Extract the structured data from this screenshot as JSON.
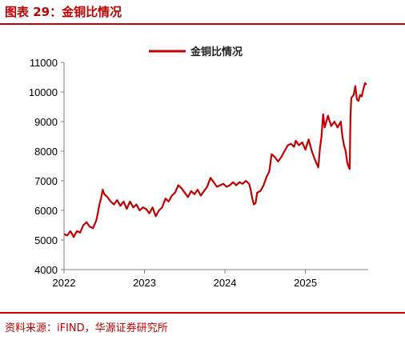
{
  "figure": {
    "title": "图表 29：金铜比情况",
    "source": "资料来源：iFIND，华源证券研究所"
  },
  "colors": {
    "accent": "#c00000",
    "series": "#c00000",
    "axis": "#808080"
  },
  "chart_data": {
    "type": "line",
    "title": "",
    "xlabel": "",
    "ylabel": "",
    "ylim": [
      4000,
      11000
    ],
    "yticks": [
      4000,
      5000,
      6000,
      7000,
      8000,
      9000,
      10000,
      11000
    ],
    "xlim": [
      2022.0,
      2025.78
    ],
    "xticks": [
      2022,
      2023,
      2024,
      2025
    ],
    "grid": false,
    "legend": "top-center",
    "series": [
      {
        "name": "金铜比情况",
        "points": [
          [
            2022.0,
            5200
          ],
          [
            2022.04,
            5150
          ],
          [
            2022.08,
            5300
          ],
          [
            2022.12,
            5100
          ],
          [
            2022.16,
            5300
          ],
          [
            2022.2,
            5250
          ],
          [
            2022.24,
            5500
          ],
          [
            2022.28,
            5600
          ],
          [
            2022.32,
            5450
          ],
          [
            2022.36,
            5400
          ],
          [
            2022.4,
            5650
          ],
          [
            2022.42,
            5900
          ],
          [
            2022.44,
            6200
          ],
          [
            2022.46,
            6400
          ],
          [
            2022.48,
            6700
          ],
          [
            2022.5,
            6550
          ],
          [
            2022.54,
            6450
          ],
          [
            2022.58,
            6300
          ],
          [
            2022.62,
            6200
          ],
          [
            2022.66,
            6350
          ],
          [
            2022.7,
            6150
          ],
          [
            2022.74,
            6300
          ],
          [
            2022.78,
            6050
          ],
          [
            2022.82,
            6300
          ],
          [
            2022.86,
            6100
          ],
          [
            2022.9,
            6200
          ],
          [
            2022.94,
            6000
          ],
          [
            2022.98,
            6100
          ],
          [
            2023.02,
            6050
          ],
          [
            2023.06,
            5900
          ],
          [
            2023.1,
            6100
          ],
          [
            2023.14,
            5800
          ],
          [
            2023.18,
            6000
          ],
          [
            2023.22,
            6100
          ],
          [
            2023.26,
            6400
          ],
          [
            2023.3,
            6300
          ],
          [
            2023.34,
            6500
          ],
          [
            2023.38,
            6600
          ],
          [
            2023.42,
            6850
          ],
          [
            2023.46,
            6750
          ],
          [
            2023.5,
            6600
          ],
          [
            2023.54,
            6450
          ],
          [
            2023.58,
            6650
          ],
          [
            2023.62,
            6550
          ],
          [
            2023.66,
            6700
          ],
          [
            2023.7,
            6500
          ],
          [
            2023.74,
            6650
          ],
          [
            2023.78,
            6800
          ],
          [
            2023.82,
            7100
          ],
          [
            2023.86,
            6950
          ],
          [
            2023.9,
            6800
          ],
          [
            2023.94,
            6850
          ],
          [
            2023.98,
            6900
          ],
          [
            2024.02,
            6800
          ],
          [
            2024.06,
            6850
          ],
          [
            2024.1,
            6950
          ],
          [
            2024.14,
            6850
          ],
          [
            2024.18,
            6950
          ],
          [
            2024.22,
            6900
          ],
          [
            2024.26,
            7000
          ],
          [
            2024.3,
            6900
          ],
          [
            2024.32,
            6700
          ],
          [
            2024.34,
            6400
          ],
          [
            2024.36,
            6200
          ],
          [
            2024.38,
            6250
          ],
          [
            2024.4,
            6600
          ],
          [
            2024.44,
            6650
          ],
          [
            2024.48,
            6850
          ],
          [
            2024.52,
            7150
          ],
          [
            2024.55,
            7300
          ],
          [
            2024.58,
            7900
          ],
          [
            2024.62,
            7800
          ],
          [
            2024.66,
            7650
          ],
          [
            2024.7,
            7800
          ],
          [
            2024.74,
            8000
          ],
          [
            2024.78,
            8200
          ],
          [
            2024.82,
            8250
          ],
          [
            2024.86,
            8150
          ],
          [
            2024.88,
            8350
          ],
          [
            2024.92,
            8200
          ],
          [
            2024.96,
            8300
          ],
          [
            2025.0,
            8050
          ],
          [
            2025.04,
            8400
          ],
          [
            2025.08,
            8000
          ],
          [
            2025.12,
            7700
          ],
          [
            2025.16,
            7450
          ],
          [
            2025.18,
            8100
          ],
          [
            2025.2,
            8500
          ],
          [
            2025.22,
            9250
          ],
          [
            2025.24,
            8800
          ],
          [
            2025.28,
            9200
          ],
          [
            2025.32,
            8850
          ],
          [
            2025.36,
            9000
          ],
          [
            2025.4,
            8800
          ],
          [
            2025.44,
            9000
          ],
          [
            2025.46,
            8500
          ],
          [
            2025.48,
            8200
          ],
          [
            2025.5,
            8000
          ],
          [
            2025.52,
            7600
          ],
          [
            2025.54,
            7450
          ],
          [
            2025.55,
            7400
          ],
          [
            2025.56,
            9200
          ],
          [
            2025.57,
            9800
          ],
          [
            2025.6,
            9900
          ],
          [
            2025.62,
            10200
          ],
          [
            2025.64,
            9750
          ],
          [
            2025.66,
            9700
          ],
          [
            2025.68,
            9900
          ],
          [
            2025.7,
            9850
          ],
          [
            2025.72,
            10100
          ],
          [
            2025.74,
            10300
          ],
          [
            2025.76,
            10250
          ]
        ]
      }
    ]
  }
}
